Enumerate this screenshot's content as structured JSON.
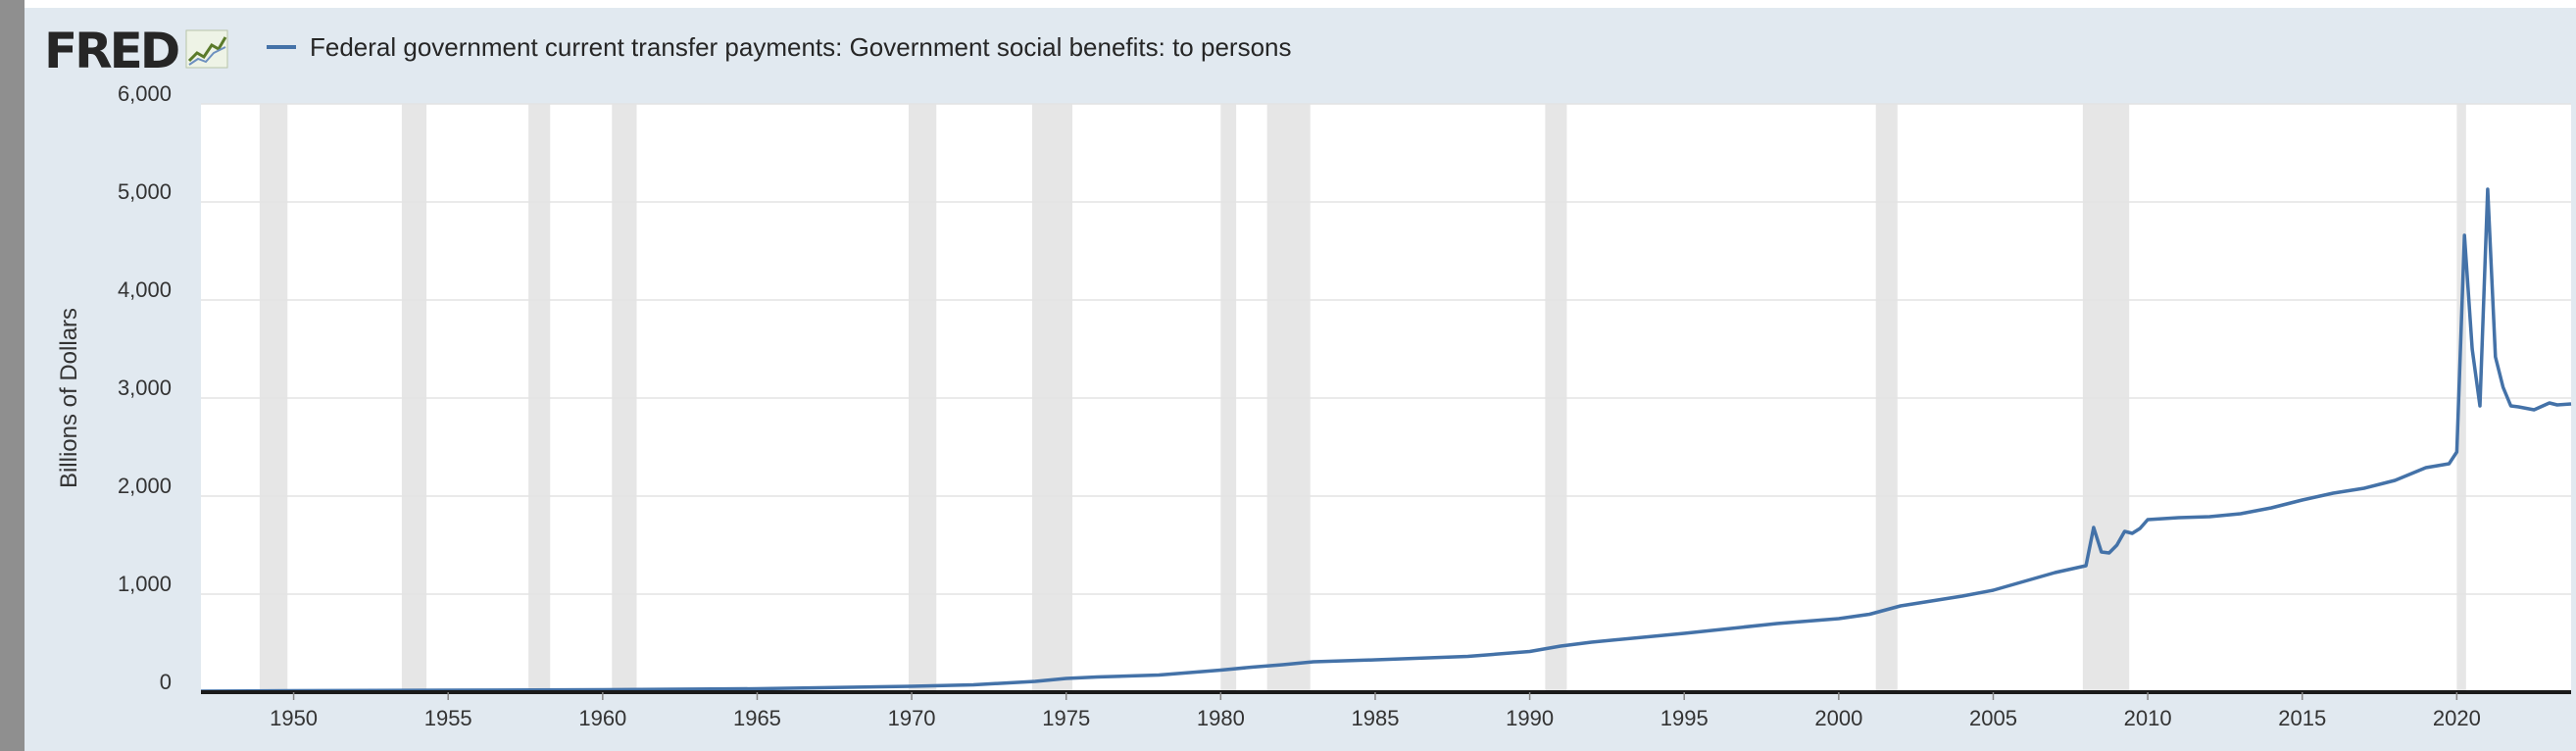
{
  "header": {
    "logo_text": "FRED",
    "logo_icon": "fred-chart-icon"
  },
  "colors": {
    "series": "#4472a8",
    "recession": "#e6e6e6",
    "plot_bg": "#ffffff",
    "panel_bg": "#e1e9f0",
    "grid": "#e3e3e3",
    "axis": "#1a1a1a"
  },
  "chart_data": {
    "type": "line",
    "title": "",
    "xlabel": "",
    "ylabel": "Billions of Dollars",
    "ylim": [
      0,
      6000
    ],
    "xlim": [
      1947.0,
      2023.7
    ],
    "grid": true,
    "legend_position": "top-left",
    "yticks": [
      0,
      1000,
      2000,
      3000,
      4000,
      5000,
      6000
    ],
    "ytick_labels": [
      "0",
      "1,000",
      "2,000",
      "3,000",
      "4,000",
      "5,000",
      "6,000"
    ],
    "xticks": [
      1950,
      1955,
      1960,
      1965,
      1970,
      1975,
      1980,
      1985,
      1990,
      1995,
      2000,
      2005,
      2010,
      2015,
      2020
    ],
    "xtick_labels": [
      "1950",
      "1955",
      "1960",
      "1965",
      "1970",
      "1975",
      "1980",
      "1985",
      "1990",
      "1995",
      "2000",
      "2005",
      "2010",
      "2015",
      "2020"
    ],
    "recessions": [
      [
        1948.9,
        1949.8
      ],
      [
        1953.5,
        1954.3
      ],
      [
        1957.6,
        1958.3
      ],
      [
        1960.3,
        1961.1
      ],
      [
        1969.9,
        1970.8
      ],
      [
        1973.9,
        1975.2
      ],
      [
        1980.0,
        1980.5
      ],
      [
        1981.5,
        1982.9
      ],
      [
        1990.5,
        1991.2
      ],
      [
        2001.2,
        2001.9
      ],
      [
        2007.9,
        2009.4
      ],
      [
        2020.0,
        2020.3
      ]
    ],
    "series": [
      {
        "name": "Federal government current transfer payments: Government social benefits: to persons",
        "x": [
          1947.0,
          1950.0,
          1955.0,
          1960.0,
          1965.0,
          1970.0,
          1972.0,
          1974.0,
          1975.0,
          1976.0,
          1978.0,
          1980.0,
          1981.0,
          1982.0,
          1983.0,
          1985.0,
          1988.0,
          1990.0,
          1991.0,
          1992.0,
          1995.0,
          1998.0,
          2000.0,
          2001.0,
          2002.0,
          2003.0,
          2004.0,
          2005.0,
          2006.0,
          2007.0,
          2008.0,
          2008.25,
          2008.5,
          2008.75,
          2009.0,
          2009.25,
          2009.5,
          2009.75,
          2010.0,
          2011.0,
          2012.0,
          2013.0,
          2014.0,
          2015.0,
          2016.0,
          2017.0,
          2018.0,
          2019.0,
          2019.75,
          2020.0,
          2020.25,
          2020.5,
          2020.75,
          2021.0,
          2021.25,
          2021.5,
          2021.75,
          2022.0,
          2022.5,
          2023.0,
          2023.25,
          2023.7
        ],
        "y": [
          10,
          15,
          20,
          25,
          35,
          60,
          75,
          110,
          140,
          155,
          175,
          225,
          255,
          280,
          310,
          330,
          365,
          415,
          470,
          510,
          600,
          700,
          750,
          795,
          880,
          930,
          980,
          1040,
          1130,
          1220,
          1290,
          1680,
          1430,
          1420,
          1500,
          1640,
          1620,
          1670,
          1760,
          1780,
          1790,
          1820,
          1880,
          1960,
          2030,
          2080,
          2160,
          2290,
          2330,
          2450,
          4660,
          3500,
          2920,
          5130,
          3420,
          3110,
          2920,
          2910,
          2880,
          2950,
          2930,
          2940
        ]
      }
    ]
  }
}
